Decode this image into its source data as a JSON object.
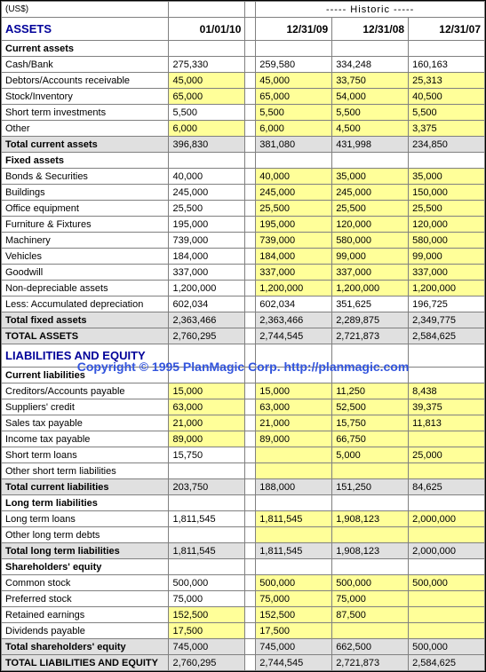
{
  "currency_label": "(US$)",
  "historic_label": "----- Historic -----",
  "watermark": "Copyright © 1995 PlanMagic Corp. http://planmagic.com",
  "colors": {
    "section_title": "#000099",
    "highlight": "#ffff99",
    "subtotal_bg": "#e0e0e0",
    "grid": "#808080",
    "watermark": "#3355dd",
    "background": "#ffffff"
  },
  "columns": {
    "main": "01/01/10",
    "h1": "12/31/09",
    "h2": "12/31/08",
    "h3": "12/31/07"
  },
  "sections": {
    "assets_title": "ASSETS",
    "current_assets": "Current assets",
    "fixed_assets": "Fixed assets",
    "total_assets": "TOTAL ASSETS",
    "liab_title": "LIABILITIES AND EQUITY",
    "current_liab": "Current liabilities",
    "long_liab": "Long term liabilities",
    "equity": "Shareholders' equity",
    "total_liab_eq": "TOTAL LIABILITIES AND EQUITY"
  },
  "rows": {
    "cash": {
      "label": "Cash/Bank",
      "v": [
        "275,330",
        "259,580",
        "334,248",
        "160,163"
      ],
      "hl": [
        0,
        0,
        0,
        0
      ]
    },
    "debtors": {
      "label": "Debtors/Accounts receivable",
      "v": [
        "45,000",
        "45,000",
        "33,750",
        "25,313"
      ],
      "hl": [
        1,
        1,
        1,
        1
      ]
    },
    "stock": {
      "label": "Stock/Inventory",
      "v": [
        "65,000",
        "65,000",
        "54,000",
        "40,500"
      ],
      "hl": [
        1,
        1,
        1,
        1
      ]
    },
    "stinv": {
      "label": "Short term investments",
      "v": [
        "5,500",
        "5,500",
        "5,500",
        "5,500"
      ],
      "hl": [
        0,
        1,
        1,
        1
      ]
    },
    "other_ca": {
      "label": "Other",
      "v": [
        "6,000",
        "6,000",
        "4,500",
        "3,375"
      ],
      "hl": [
        1,
        1,
        1,
        1
      ]
    },
    "total_ca": {
      "label": "Total current assets",
      "v": [
        "396,830",
        "381,080",
        "431,998",
        "234,850"
      ]
    },
    "bonds": {
      "label": "Bonds & Securities",
      "v": [
        "40,000",
        "40,000",
        "35,000",
        "35,000"
      ],
      "hl": [
        0,
        1,
        1,
        1
      ]
    },
    "buildings": {
      "label": "Buildings",
      "v": [
        "245,000",
        "245,000",
        "245,000",
        "150,000"
      ],
      "hl": [
        0,
        1,
        1,
        1
      ]
    },
    "office": {
      "label": "Office equipment",
      "v": [
        "25,500",
        "25,500",
        "25,500",
        "25,500"
      ],
      "hl": [
        0,
        1,
        1,
        1
      ]
    },
    "furniture": {
      "label": "Furniture & Fixtures",
      "v": [
        "195,000",
        "195,000",
        "120,000",
        "120,000"
      ],
      "hl": [
        0,
        1,
        1,
        1
      ]
    },
    "machinery": {
      "label": "Machinery",
      "v": [
        "739,000",
        "739,000",
        "580,000",
        "580,000"
      ],
      "hl": [
        0,
        1,
        1,
        1
      ]
    },
    "vehicles": {
      "label": "Vehicles",
      "v": [
        "184,000",
        "184,000",
        "99,000",
        "99,000"
      ],
      "hl": [
        0,
        1,
        1,
        1
      ]
    },
    "goodwill": {
      "label": "Goodwill",
      "v": [
        "337,000",
        "337,000",
        "337,000",
        "337,000"
      ],
      "hl": [
        0,
        1,
        1,
        1
      ]
    },
    "nondep": {
      "label": "Non-depreciable assets",
      "v": [
        "1,200,000",
        "1,200,000",
        "1,200,000",
        "1,200,000"
      ],
      "hl": [
        0,
        1,
        1,
        1
      ]
    },
    "accdep": {
      "label": "Less: Accumulated depreciation",
      "v": [
        "602,034",
        "602,034",
        "351,625",
        "196,725"
      ],
      "hl": [
        0,
        0,
        0,
        0
      ]
    },
    "total_fa": {
      "label": "Total fixed assets",
      "v": [
        "2,363,466",
        "2,363,466",
        "2,289,875",
        "2,349,775"
      ]
    },
    "total_assets": {
      "label": "TOTAL ASSETS",
      "v": [
        "2,760,295",
        "2,744,545",
        "2,721,873",
        "2,584,625"
      ]
    },
    "creditors": {
      "label": "Creditors/Accounts payable",
      "v": [
        "15,000",
        "15,000",
        "11,250",
        "8,438"
      ],
      "hl": [
        1,
        1,
        1,
        1
      ]
    },
    "suppliers": {
      "label": "Suppliers' credit",
      "v": [
        "63,000",
        "63,000",
        "52,500",
        "39,375"
      ],
      "hl": [
        1,
        1,
        1,
        1
      ]
    },
    "salestax": {
      "label": "Sales tax payable",
      "v": [
        "21,000",
        "21,000",
        "15,750",
        "11,813"
      ],
      "hl": [
        1,
        1,
        1,
        1
      ]
    },
    "incometax": {
      "label": "Income tax payable",
      "v": [
        "89,000",
        "89,000",
        "66,750",
        ""
      ],
      "hl": [
        1,
        1,
        1,
        1
      ]
    },
    "stloans": {
      "label": "Short term loans",
      "v": [
        "15,750",
        "",
        "5,000",
        "25,000"
      ],
      "hl": [
        0,
        1,
        1,
        1
      ]
    },
    "other_stl": {
      "label": "Other short term liabilities",
      "v": [
        "",
        "",
        "",
        ""
      ],
      "hl": [
        0,
        1,
        1,
        1
      ]
    },
    "total_cl": {
      "label": "Total current liabilities",
      "v": [
        "203,750",
        "188,000",
        "151,250",
        "84,625"
      ]
    },
    "ltloans": {
      "label": "Long term loans",
      "v": [
        "1,811,545",
        "1,811,545",
        "1,908,123",
        "2,000,000"
      ],
      "hl": [
        0,
        1,
        1,
        1
      ]
    },
    "other_ltd": {
      "label": "Other long term debts",
      "v": [
        "",
        "",
        "",
        ""
      ],
      "hl": [
        0,
        1,
        1,
        1
      ]
    },
    "total_ltl": {
      "label": "Total long term liabilities",
      "v": [
        "1,811,545",
        "1,811,545",
        "1,908,123",
        "2,000,000"
      ]
    },
    "common": {
      "label": "Common stock",
      "v": [
        "500,000",
        "500,000",
        "500,000",
        "500,000"
      ],
      "hl": [
        0,
        1,
        1,
        1
      ]
    },
    "preferred": {
      "label": "Preferred stock",
      "v": [
        "75,000",
        "75,000",
        "75,000",
        ""
      ],
      "hl": [
        0,
        1,
        1,
        1
      ]
    },
    "retained": {
      "label": "Retained earnings",
      "v": [
        "152,500",
        "152,500",
        "87,500",
        ""
      ],
      "hl": [
        1,
        1,
        1,
        1
      ]
    },
    "dividends": {
      "label": "Dividends payable",
      "v": [
        "17,500",
        "17,500",
        "",
        ""
      ],
      "hl": [
        1,
        1,
        1,
        1
      ]
    },
    "total_eq": {
      "label": "Total shareholders' equity",
      "v": [
        "745,000",
        "745,000",
        "662,500",
        "500,000"
      ]
    },
    "total_le": {
      "label": "TOTAL LIABILITIES AND EQUITY",
      "v": [
        "2,760,295",
        "2,744,545",
        "2,721,873",
        "2,584,625"
      ]
    }
  }
}
